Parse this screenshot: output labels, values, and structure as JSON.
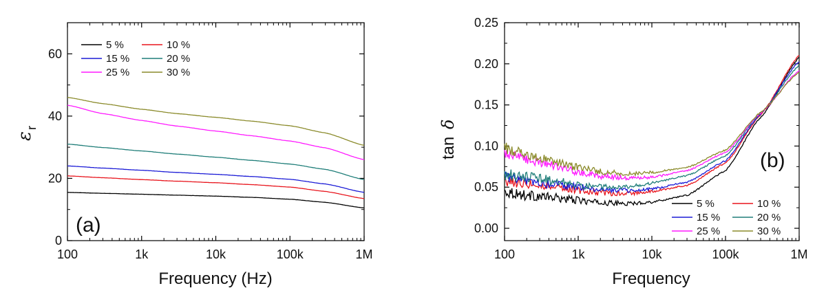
{
  "chart_data": [
    {
      "type": "line",
      "panel_label": "(a)",
      "xlabel": "Frequency (Hz)",
      "ylabel_symbol": "ε",
      "ylabel_subscript": "r",
      "xscale": "log",
      "xlim": [
        100,
        1000000
      ],
      "ylim": [
        0,
        70
      ],
      "x_ticks": [
        100,
        1000,
        10000,
        100000,
        1000000
      ],
      "x_tick_labels": [
        "100",
        "1k",
        "10k",
        "100k",
        "1M"
      ],
      "y_ticks": [
        0,
        20,
        40,
        60
      ],
      "y_tick_labels": [
        "0",
        "20",
        "40",
        "60"
      ],
      "legend_position": "top-left",
      "x": [
        100,
        300,
        1000,
        3000,
        10000,
        30000,
        100000,
        300000,
        1000000
      ],
      "series": [
        {
          "name": "5 %",
          "color": "#000000",
          "values": [
            15.5,
            15.2,
            14.9,
            14.6,
            14.3,
            13.9,
            13.3,
            12.3,
            10.5
          ]
        },
        {
          "name": "10 %",
          "color": "#e8141c",
          "values": [
            20.8,
            20.2,
            19.6,
            19.1,
            18.6,
            18.0,
            17.2,
            15.8,
            13.5
          ]
        },
        {
          "name": "15 %",
          "color": "#1a1ad6",
          "values": [
            24.0,
            23.3,
            22.6,
            21.9,
            21.3,
            20.6,
            19.7,
            18.2,
            15.5
          ]
        },
        {
          "name": "20 %",
          "color": "#1e7d78",
          "values": [
            31.0,
            29.9,
            28.8,
            27.8,
            26.8,
            25.8,
            24.6,
            22.9,
            19.6
          ]
        },
        {
          "name": "25 %",
          "color": "#ff18ff",
          "values": [
            43.5,
            40.8,
            38.6,
            36.8,
            35.2,
            33.7,
            32.0,
            29.8,
            26.0
          ]
        },
        {
          "name": "30 %",
          "color": "#8a8a2a",
          "values": [
            46.0,
            44.0,
            42.2,
            40.8,
            39.6,
            38.4,
            36.9,
            34.6,
            30.6
          ]
        }
      ]
    },
    {
      "type": "line",
      "panel_label": "(b)",
      "xlabel": "Frequency",
      "ylabel_prefix": "tan",
      "ylabel_symbol": "δ",
      "xscale": "log",
      "xlim": [
        100,
        1000000
      ],
      "ylim": [
        -0.015,
        0.25
      ],
      "x_ticks": [
        100,
        1000,
        10000,
        100000,
        1000000
      ],
      "x_tick_labels": [
        "100",
        "1k",
        "10k",
        "100k",
        "1M"
      ],
      "y_ticks": [
        0,
        0.05,
        0.1,
        0.15,
        0.2,
        0.25
      ],
      "y_tick_labels": [
        "0.00",
        "0.05",
        "0.10",
        "0.15",
        "0.20",
        "0.25"
      ],
      "legend_position": "bottom-right",
      "x": [
        100,
        200,
        500,
        1000,
        2000,
        5000,
        10000,
        30000,
        100000,
        300000,
        1000000
      ],
      "series": [
        {
          "name": "5 %",
          "color": "#000000",
          "values": [
            0.045,
            0.04,
            0.037,
            0.034,
            0.031,
            0.03,
            0.032,
            0.04,
            0.07,
            0.135,
            0.208
          ]
        },
        {
          "name": "10 %",
          "color": "#e8141c",
          "values": [
            0.058,
            0.055,
            0.051,
            0.046,
            0.043,
            0.042,
            0.045,
            0.052,
            0.079,
            0.138,
            0.21
          ]
        },
        {
          "name": "15 %",
          "color": "#1a1ad6",
          "values": [
            0.063,
            0.058,
            0.053,
            0.05,
            0.047,
            0.046,
            0.048,
            0.056,
            0.082,
            0.139,
            0.203
          ]
        },
        {
          "name": "20 %",
          "color": "#1e7d78",
          "values": [
            0.066,
            0.062,
            0.058,
            0.053,
            0.05,
            0.051,
            0.055,
            0.064,
            0.088,
            0.14,
            0.198
          ]
        },
        {
          "name": "25 %",
          "color": "#ff18ff",
          "values": [
            0.091,
            0.084,
            0.075,
            0.068,
            0.063,
            0.061,
            0.062,
            0.07,
            0.092,
            0.14,
            0.192
          ]
        },
        {
          "name": "30 %",
          "color": "#8a8a2a",
          "values": [
            0.098,
            0.09,
            0.081,
            0.074,
            0.069,
            0.066,
            0.068,
            0.074,
            0.095,
            0.141,
            0.19
          ]
        }
      ]
    }
  ]
}
